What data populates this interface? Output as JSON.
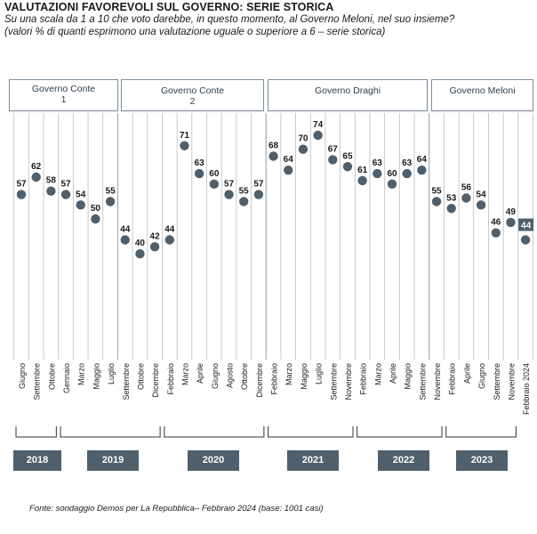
{
  "title": "VALUTAZIONI FAVOREVOLI SUL GOVERNO: SERIE STORICA",
  "subtitle_line1": "Su una scala da 1 a 10 che voto darebbe, in questo momento, al Governo Meloni, nel suo insieme?",
  "subtitle_line2": "(valori % di quanti esprimono una valutazione uguale o superiore a 6 – serie storica)",
  "source": "Fonte: sondaggio Demos per La Repubblica– Febbraio 2024 (base: 1001 casi)",
  "governments": [
    {
      "line1": "Governo Conte",
      "line2": "1"
    },
    {
      "line1": "Governo Conte",
      "line2": "2"
    },
    {
      "line1": "Governo Draghi",
      "line2": ""
    },
    {
      "line1": "Governo Meloni",
      "line2": ""
    }
  ],
  "years": [
    "2018",
    "2019",
    "2020",
    "2021",
    "2022",
    "2023"
  ],
  "colors": {
    "marker": "#4f5f6c",
    "grid": "#bcbcbc",
    "badge": "#4f5f6c",
    "box_border": "#7f8f9c"
  },
  "chart_data": {
    "type": "scatter",
    "title": "VALUTAZIONI FAVOREVOLI SUL GOVERNO: SERIE STORICA",
    "x": [
      "Giugno",
      "Settembre",
      "Ottobre",
      "Gennaio",
      "Marzo",
      "Maggio",
      "Luglio",
      "Settembre",
      "Ottobre",
      "Dicembre",
      "Febbraio",
      "Marzo",
      "Aprile",
      "Giugno",
      "Agosto",
      "Ottobre",
      "Dicembre",
      "Febbraio",
      "Marzo",
      "Maggio",
      "Luglio",
      "Settembre",
      "Novembre",
      "Febbraio",
      "Marzo",
      "Aprile",
      "Maggio",
      "Settembre",
      "Novembre",
      "Febbraio",
      "Aprile",
      "Giugno",
      "Settembre",
      "Novembre",
      "Febbraio 2024"
    ],
    "values": [
      57,
      62,
      58,
      57,
      54,
      50,
      55,
      44,
      40,
      42,
      44,
      71,
      63,
      60,
      57,
      55,
      57,
      68,
      64,
      70,
      74,
      67,
      65,
      61,
      63,
      60,
      63,
      64,
      55,
      53,
      56,
      54,
      46,
      49,
      44
    ],
    "last_value_highlighted": true,
    "ylim": [
      0,
      100
    ],
    "grid": "vertical",
    "government_periods": [
      {
        "name": "Governo Conte 1",
        "from": "Giugno",
        "to": "Luglio"
      },
      {
        "name": "Governo Conte 2",
        "from": "Settembre",
        "to": "Dicembre"
      },
      {
        "name": "Governo Draghi",
        "from": "Febbraio",
        "to": "Settembre"
      },
      {
        "name": "Governo Meloni",
        "from": "Novembre",
        "to": "Febbraio 2024"
      }
    ],
    "year_groups": [
      {
        "year": "2018",
        "count": 3
      },
      {
        "year": "2019",
        "count": 7
      },
      {
        "year": "2020",
        "count": 7
      },
      {
        "year": "2021",
        "count": 6
      },
      {
        "year": "2022",
        "count": 6
      },
      {
        "year": "2023",
        "count": 5
      }
    ]
  }
}
